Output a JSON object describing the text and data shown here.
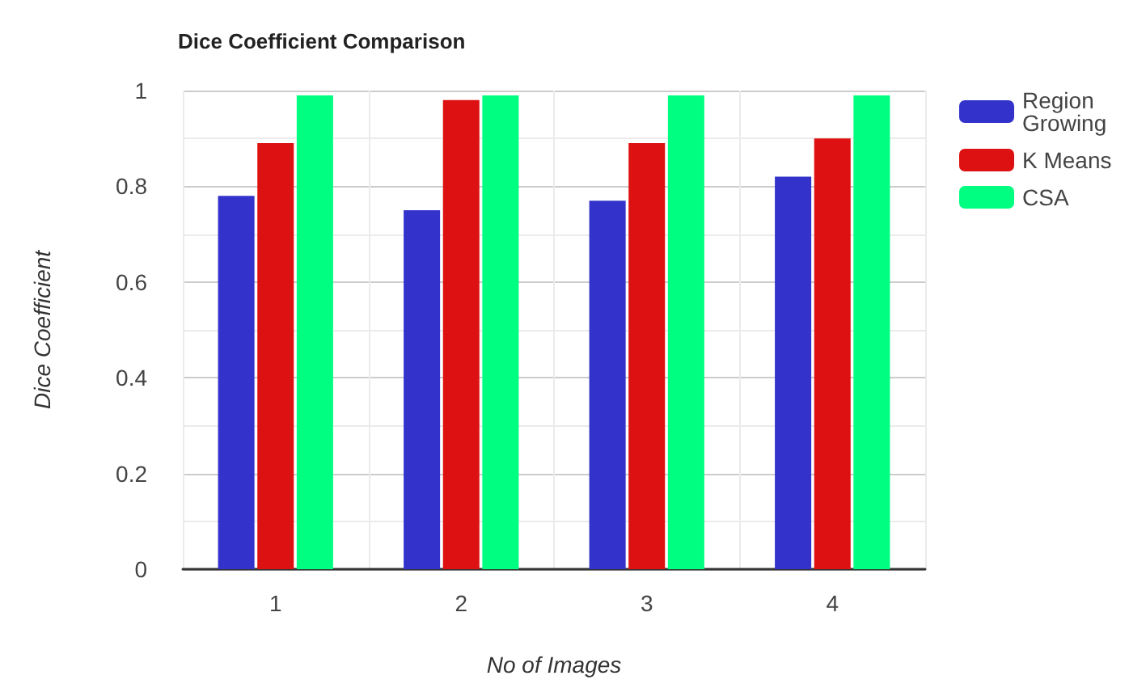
{
  "chart_data": {
    "type": "bar",
    "title": "Dice Coefficient Comparison",
    "xlabel": "No of Images",
    "ylabel": "Dice Coefficient",
    "categories": [
      "1",
      "2",
      "3",
      "4"
    ],
    "series": [
      {
        "name": "Region Growing",
        "color": "#3333cc",
        "values": [
          0.78,
          0.75,
          0.77,
          0.82
        ]
      },
      {
        "name": "K Means",
        "color": "#dd1111",
        "values": [
          0.89,
          0.98,
          0.89,
          0.9
        ]
      },
      {
        "name": "CSA",
        "color": "#00ff80",
        "values": [
          0.99,
          0.99,
          0.99,
          0.99
        ]
      }
    ],
    "ylim": [
      0,
      1
    ],
    "yticks": [
      0,
      0.2,
      0.4,
      0.6,
      0.8,
      1
    ],
    "grid": true,
    "legend": "top right"
  }
}
